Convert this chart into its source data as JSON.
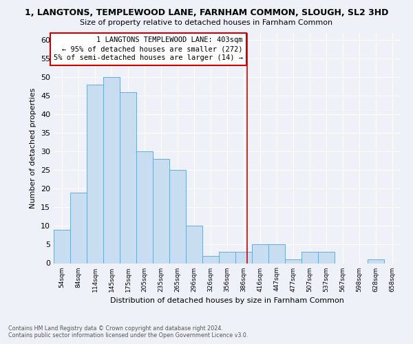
{
  "title": "1, LANGTONS, TEMPLEWOOD LANE, FARNHAM COMMON, SLOUGH, SL2 3HD",
  "subtitle": "Size of property relative to detached houses in Farnham Common",
  "xlabel": "Distribution of detached houses by size in Farnham Common",
  "ylabel": "Number of detached properties",
  "footer_line1": "Contains HM Land Registry data © Crown copyright and database right 2024.",
  "footer_line2": "Contains public sector information licensed under the Open Government Licence v3.0.",
  "bin_labels": [
    "54sqm",
    "84sqm",
    "114sqm",
    "145sqm",
    "175sqm",
    "205sqm",
    "235sqm",
    "265sqm",
    "296sqm",
    "326sqm",
    "356sqm",
    "386sqm",
    "416sqm",
    "447sqm",
    "477sqm",
    "507sqm",
    "537sqm",
    "567sqm",
    "598sqm",
    "628sqm",
    "658sqm"
  ],
  "bar_heights": [
    9,
    19,
    48,
    50,
    46,
    30,
    28,
    25,
    10,
    2,
    3,
    3,
    5,
    5,
    1,
    3,
    3,
    0,
    0,
    1,
    0
  ],
  "bar_color": "#c9ddf0",
  "bar_edgecolor": "#6aaad4",
  "ylim": [
    0,
    62
  ],
  "yticks": [
    0,
    5,
    10,
    15,
    20,
    25,
    30,
    35,
    40,
    45,
    50,
    55,
    60
  ],
  "vline_x_index": 11.7,
  "vline_color": "#cc0000",
  "annotation_text": "1 LANGTONS TEMPLEWOOD LANE: 403sqm\n← 95% of detached houses are smaller (272)\n5% of semi-detached houses are larger (14) →",
  "annotation_box_color": "#ffffff",
  "annotation_box_edgecolor": "#cc0000",
  "background_color": "#eef2f8",
  "grid_color": "#ffffff",
  "title_fontsize": 9,
  "subtitle_fontsize": 8
}
